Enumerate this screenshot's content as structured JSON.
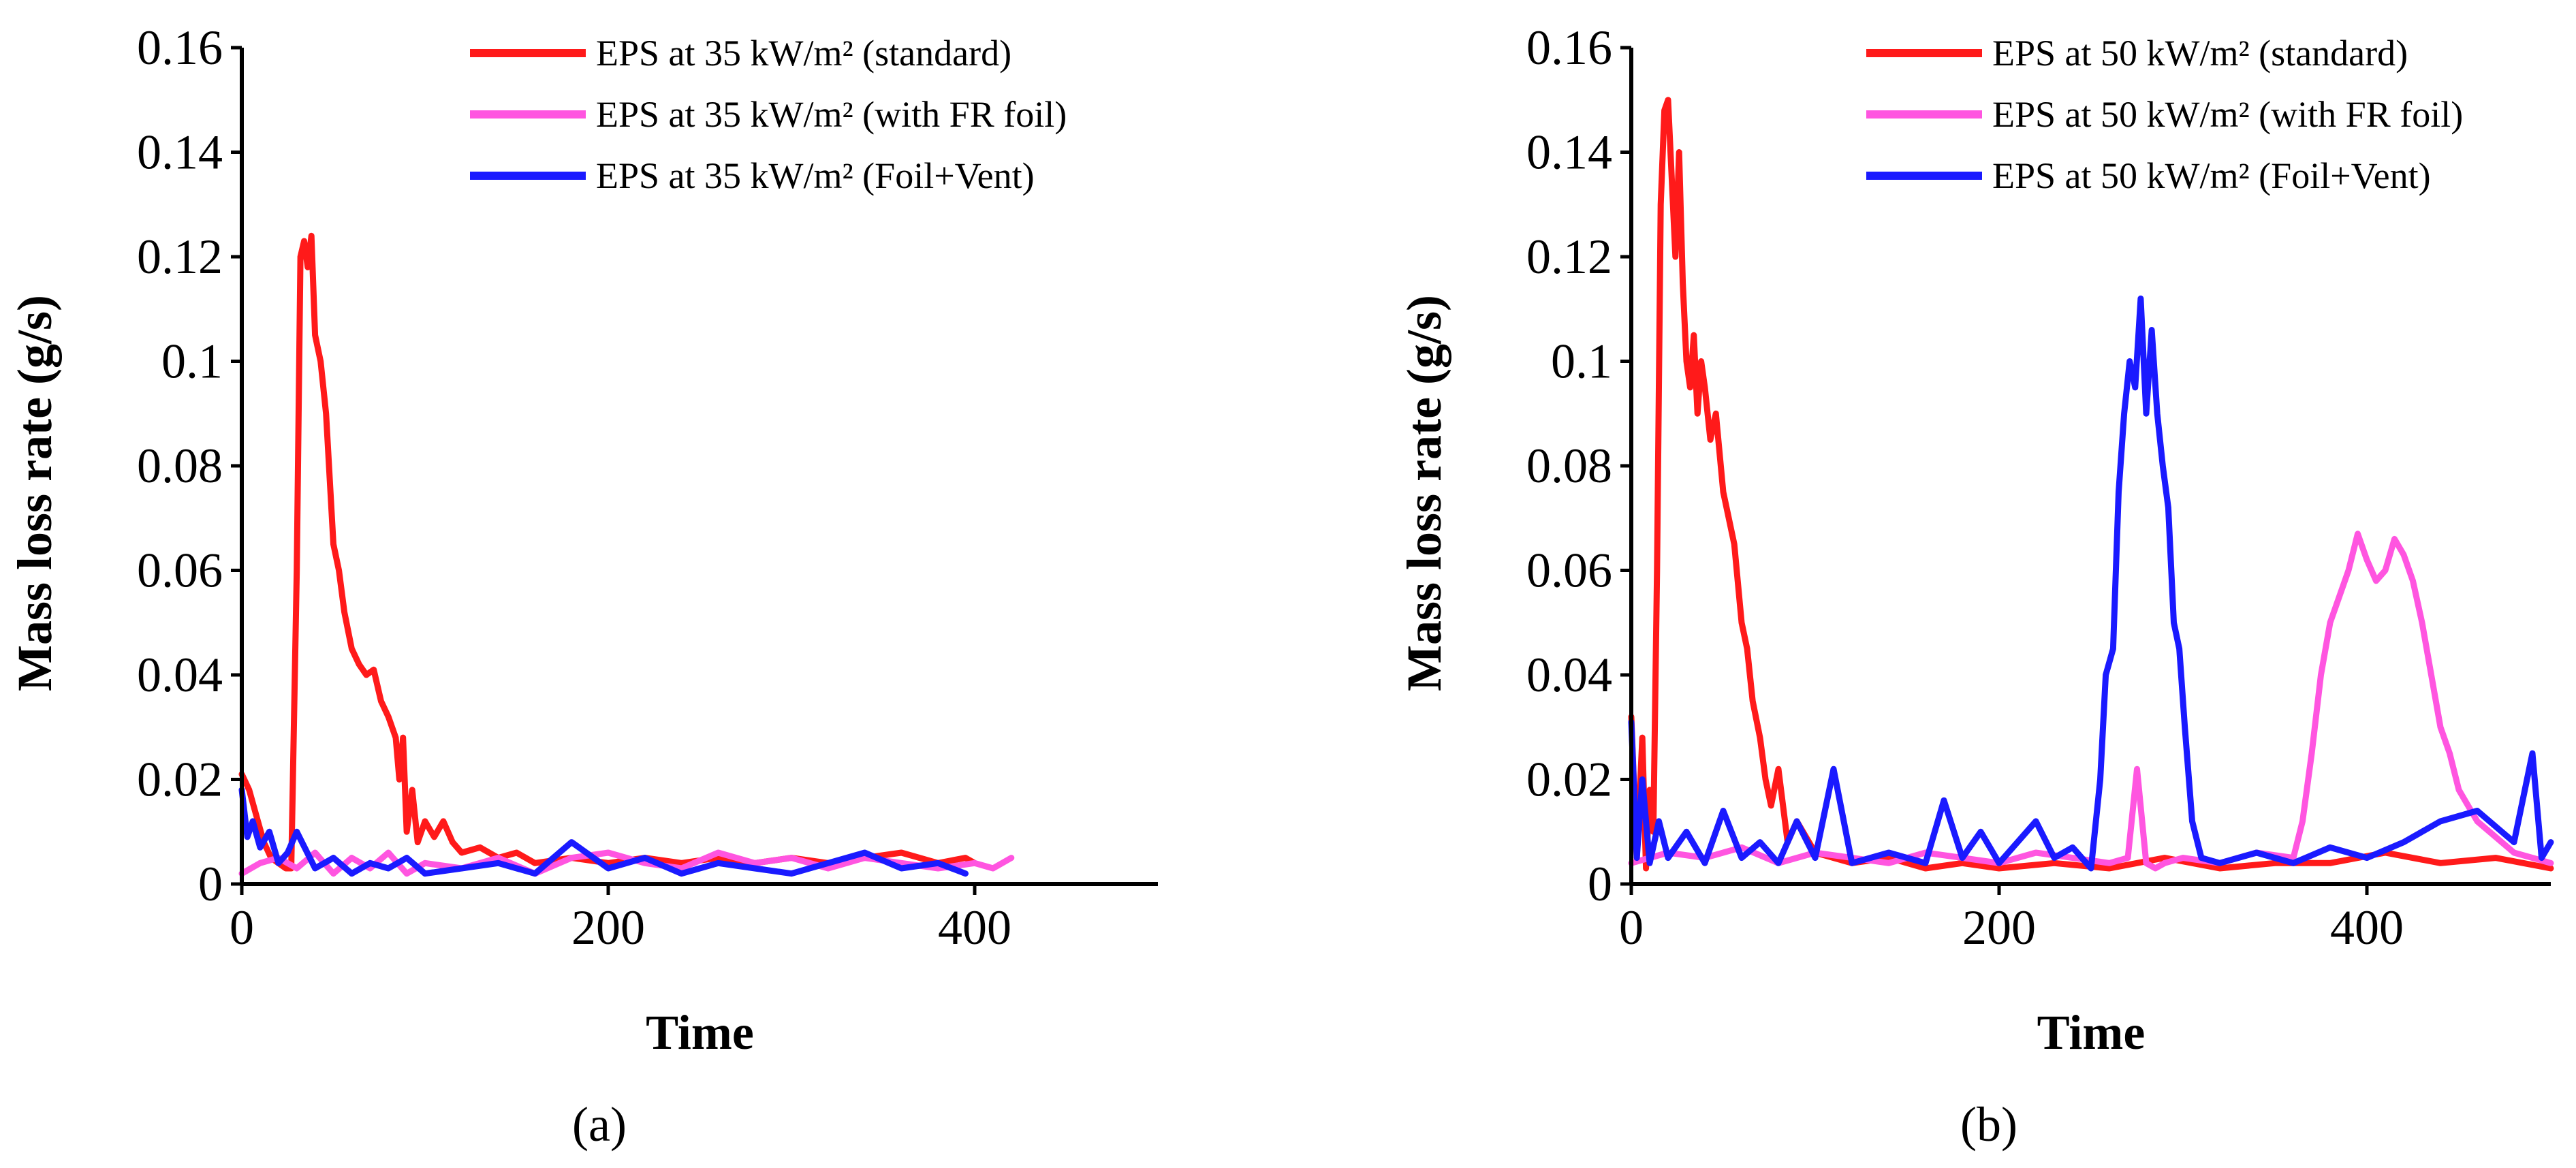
{
  "figure": {
    "panel_labels": [
      "(a)",
      "(b)"
    ]
  },
  "chart_data": [
    {
      "type": "line",
      "panel": "(a)",
      "title": "",
      "xlabel": "Time",
      "ylabel": "Mass loss rate (g/s)",
      "xlim": [
        0,
        500
      ],
      "ylim": [
        0,
        0.16
      ],
      "xticks": [
        0,
        200,
        400
      ],
      "yticks": [
        0,
        0.02,
        0.04,
        0.06,
        0.08,
        0.1,
        0.12,
        0.14,
        0.16
      ],
      "xtick_labels": [
        "0",
        "200",
        "400"
      ],
      "ytick_labels": [
        "0",
        "0.02",
        "0.04",
        "0.06",
        "0.08",
        "0.1",
        "0.12",
        "0.14",
        "0.16"
      ],
      "legend_position": "top-right",
      "grid": false,
      "series": [
        {
          "name": "EPS at 35 kW/m² (standard)",
          "color": "#ff1a1a",
          "x": [
            0,
            4,
            8,
            12,
            16,
            20,
            24,
            27,
            30,
            32,
            34,
            36,
            38,
            40,
            43,
            46,
            50,
            53,
            56,
            60,
            64,
            68,
            72,
            76,
            80,
            84,
            86,
            88,
            90,
            93,
            96,
            100,
            105,
            110,
            115,
            120,
            130,
            140,
            150,
            160,
            180,
            200,
            220,
            240,
            260,
            280,
            300,
            320,
            340,
            360,
            380,
            395,
            400
          ],
          "y": [
            0.021,
            0.018,
            0.013,
            0.008,
            0.005,
            0.004,
            0.003,
            0.003,
            0.06,
            0.12,
            0.123,
            0.118,
            0.124,
            0.105,
            0.1,
            0.09,
            0.065,
            0.06,
            0.052,
            0.045,
            0.042,
            0.04,
            0.041,
            0.035,
            0.032,
            0.028,
            0.02,
            0.028,
            0.01,
            0.018,
            0.008,
            0.012,
            0.009,
            0.012,
            0.008,
            0.006,
            0.007,
            0.005,
            0.006,
            0.004,
            0.005,
            0.004,
            0.005,
            0.004,
            0.005,
            0.004,
            0.005,
            0.004,
            0.005,
            0.006,
            0.004,
            0.005,
            0.004
          ]
        },
        {
          "name": "EPS at 35 kW/m² (with FR foil)",
          "color": "#ff55e0",
          "x": [
            0,
            10,
            20,
            30,
            40,
            50,
            60,
            70,
            80,
            90,
            100,
            120,
            140,
            160,
            180,
            200,
            220,
            240,
            260,
            280,
            300,
            320,
            340,
            360,
            380,
            400,
            410,
            420
          ],
          "y": [
            0.002,
            0.004,
            0.005,
            0.003,
            0.006,
            0.002,
            0.005,
            0.003,
            0.006,
            0.002,
            0.004,
            0.003,
            0.005,
            0.002,
            0.005,
            0.006,
            0.004,
            0.003,
            0.006,
            0.004,
            0.005,
            0.003,
            0.005,
            0.004,
            0.003,
            0.004,
            0.003,
            0.005
          ]
        },
        {
          "name": "EPS at 35 kW/m² (Foil+Vent)",
          "color": "#1a1aff",
          "x": [
            0,
            3,
            6,
            10,
            15,
            20,
            25,
            30,
            40,
            50,
            60,
            70,
            80,
            90,
            100,
            120,
            140,
            160,
            180,
            200,
            220,
            240,
            260,
            280,
            300,
            320,
            340,
            360,
            380,
            395
          ],
          "y": [
            0.018,
            0.009,
            0.012,
            0.007,
            0.01,
            0.004,
            0.006,
            0.01,
            0.003,
            0.005,
            0.002,
            0.004,
            0.003,
            0.005,
            0.002,
            0.003,
            0.004,
            0.002,
            0.008,
            0.003,
            0.005,
            0.002,
            0.004,
            0.003,
            0.002,
            0.004,
            0.006,
            0.003,
            0.004,
            0.002
          ]
        }
      ]
    },
    {
      "type": "line",
      "panel": "(b)",
      "title": "",
      "xlabel": "Time",
      "ylabel": "Mass loss rate (g/s)",
      "xlim": [
        0,
        500
      ],
      "ylim": [
        0,
        0.16
      ],
      "xticks": [
        0,
        200,
        400
      ],
      "yticks": [
        0,
        0.02,
        0.04,
        0.06,
        0.08,
        0.1,
        0.12,
        0.14,
        0.16
      ],
      "xtick_labels": [
        "0",
        "200",
        "400"
      ],
      "ytick_labels": [
        "0",
        "0.02",
        "0.04",
        "0.06",
        "0.08",
        "0.1",
        "0.12",
        "0.14",
        "0.16"
      ],
      "legend_position": "top-right",
      "grid": false,
      "series": [
        {
          "name": "EPS at 50 kW/m² (standard)",
          "color": "#ff1a1a",
          "x": [
            0,
            3,
            6,
            8,
            10,
            12,
            14,
            16,
            18,
            20,
            22,
            24,
            26,
            28,
            30,
            32,
            34,
            36,
            38,
            40,
            43,
            46,
            50,
            53,
            56,
            60,
            63,
            66,
            70,
            73,
            76,
            80,
            85,
            90,
            100,
            120,
            140,
            160,
            180,
            200,
            230,
            260,
            290,
            320,
            350,
            380,
            410,
            440,
            470,
            500
          ],
          "y": [
            0.032,
            0.005,
            0.028,
            0.003,
            0.018,
            0.01,
            0.06,
            0.13,
            0.148,
            0.15,
            0.135,
            0.12,
            0.14,
            0.115,
            0.1,
            0.095,
            0.105,
            0.09,
            0.1,
            0.095,
            0.085,
            0.09,
            0.075,
            0.07,
            0.065,
            0.05,
            0.045,
            0.035,
            0.028,
            0.02,
            0.015,
            0.022,
            0.008,
            0.012,
            0.006,
            0.004,
            0.005,
            0.003,
            0.004,
            0.003,
            0.004,
            0.003,
            0.005,
            0.003,
            0.004,
            0.004,
            0.006,
            0.004,
            0.005,
            0.003
          ]
        },
        {
          "name": "EPS at 50 kW/m² (with FR foil)",
          "color": "#ff55e0",
          "x": [
            0,
            20,
            40,
            60,
            80,
            100,
            120,
            140,
            160,
            180,
            200,
            220,
            240,
            260,
            270,
            275,
            280,
            285,
            290,
            300,
            320,
            340,
            360,
            365,
            370,
            375,
            380,
            385,
            390,
            395,
            400,
            405,
            410,
            415,
            420,
            425,
            430,
            435,
            440,
            445,
            450,
            455,
            460,
            470,
            480,
            490,
            500
          ],
          "y": [
            0.004,
            0.006,
            0.005,
            0.007,
            0.004,
            0.006,
            0.005,
            0.004,
            0.006,
            0.005,
            0.004,
            0.006,
            0.005,
            0.004,
            0.005,
            0.022,
            0.004,
            0.003,
            0.004,
            0.005,
            0.004,
            0.006,
            0.005,
            0.012,
            0.025,
            0.04,
            0.05,
            0.055,
            0.06,
            0.067,
            0.062,
            0.058,
            0.06,
            0.066,
            0.063,
            0.058,
            0.05,
            0.04,
            0.03,
            0.025,
            0.018,
            0.015,
            0.012,
            0.009,
            0.006,
            0.005,
            0.004
          ]
        },
        {
          "name": "EPS at 50 kW/m² (Foil+Vent)",
          "color": "#1a1aff",
          "x": [
            0,
            3,
            6,
            10,
            15,
            20,
            30,
            40,
            50,
            60,
            70,
            80,
            90,
            100,
            110,
            120,
            140,
            160,
            170,
            180,
            190,
            200,
            210,
            220,
            230,
            240,
            250,
            255,
            258,
            262,
            265,
            268,
            271,
            274,
            277,
            280,
            283,
            286,
            289,
            292,
            295,
            298,
            301,
            305,
            310,
            320,
            340,
            360,
            380,
            400,
            420,
            440,
            460,
            480,
            490,
            495,
            500
          ],
          "y": [
            0.031,
            0.005,
            0.02,
            0.004,
            0.012,
            0.005,
            0.01,
            0.004,
            0.014,
            0.005,
            0.008,
            0.004,
            0.012,
            0.005,
            0.022,
            0.004,
            0.006,
            0.004,
            0.016,
            0.005,
            0.01,
            0.004,
            0.008,
            0.012,
            0.005,
            0.007,
            0.003,
            0.02,
            0.04,
            0.045,
            0.075,
            0.09,
            0.1,
            0.095,
            0.112,
            0.09,
            0.106,
            0.09,
            0.08,
            0.072,
            0.05,
            0.045,
            0.03,
            0.012,
            0.005,
            0.004,
            0.006,
            0.004,
            0.007,
            0.005,
            0.008,
            0.012,
            0.014,
            0.008,
            0.025,
            0.005,
            0.008
          ]
        }
      ]
    }
  ]
}
